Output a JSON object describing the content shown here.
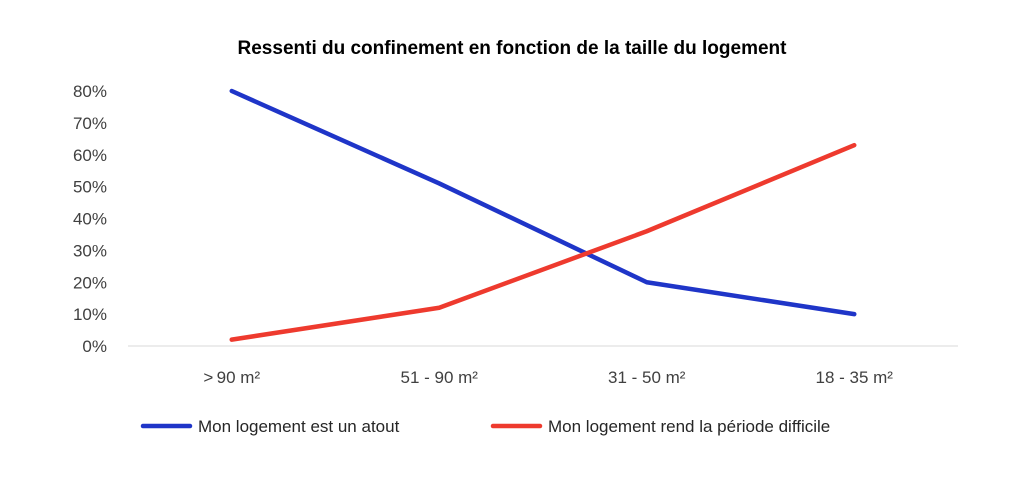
{
  "chart_data": {
    "type": "line",
    "title": "Ressenti du confinement en fonction de la taille du logement",
    "xlabel": "",
    "ylabel": "",
    "categories": [
      "> 90 m²",
      "51 - 90 m²",
      "31 - 50 m²",
      "18 - 35 m²"
    ],
    "ylim": [
      0,
      80
    ],
    "yticks": [
      "0%",
      "10%",
      "20%",
      "30%",
      "40%",
      "50%",
      "60%",
      "70%",
      "80%"
    ],
    "ytick_values": [
      0,
      10,
      20,
      30,
      40,
      50,
      60,
      70,
      80
    ],
    "grid": false,
    "legend_position": "bottom",
    "series": [
      {
        "name": "Mon logement est un atout",
        "values": [
          80,
          51,
          20,
          10
        ],
        "color": "#1f35c8"
      },
      {
        "name": "Mon logement rend la période difficile",
        "values": [
          2,
          12,
          36,
          63
        ],
        "color": "#ee3a2e"
      }
    ]
  }
}
